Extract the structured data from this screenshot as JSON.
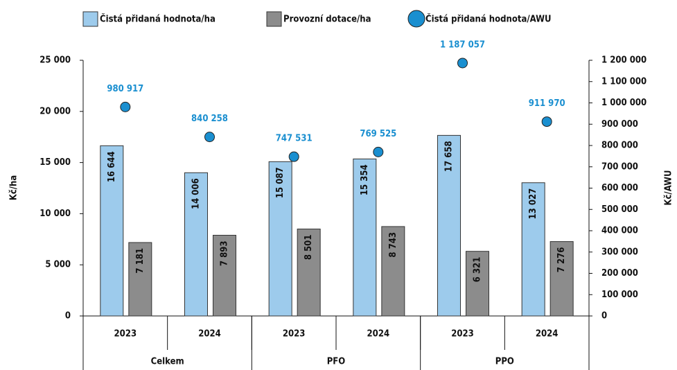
{
  "chart_data": {
    "type": "bar",
    "categories": [
      "2023",
      "2024",
      "2023",
      "2024",
      "2023",
      "2024"
    ],
    "groups": [
      "Celkem",
      "PFO",
      "PPO"
    ],
    "y_label": "Kč/ha",
    "y2_label": "Kč/AWU",
    "ylim": [
      0,
      25000
    ],
    "yticks": [
      0,
      {
        "value": 5000,
        "label": "5 000"
      },
      {
        "value": 10000,
        "label": "10 000"
      },
      {
        "value": 15000,
        "label": "15 000"
      },
      {
        "value": 20000,
        "label": "20 000"
      },
      {
        "value": 25000,
        "label": "25 000"
      }
    ],
    "y2lim": [
      0,
      1200000
    ],
    "y2ticks": [
      0,
      {
        "value": 100000,
        "label": "100 000"
      },
      {
        "value": 200000,
        "label": "200 000"
      },
      {
        "value": 300000,
        "label": "300 000"
      },
      {
        "value": 400000,
        "label": "400 000"
      },
      {
        "value": 500000,
        "label": "500 000"
      },
      {
        "value": 600000,
        "label": "600 000"
      },
      {
        "value": 700000,
        "label": "700 000"
      },
      {
        "value": 800000,
        "label": "800 000"
      },
      {
        "value": 900000,
        "label": "900 000"
      },
      {
        "value": 1000000,
        "label": "1 000 000"
      },
      {
        "value": 1100000,
        "label": "1 100 000"
      },
      {
        "value": 1200000,
        "label": "1 200 000"
      }
    ],
    "series": [
      {
        "name": "Čistá přidaná hodnota/ha",
        "type": "bar",
        "color": "#9dcbec",
        "values": [
          16644,
          14006,
          15087,
          15354,
          17658,
          13027
        ],
        "value_labels": [
          "16 644",
          "14 006",
          "15 087",
          "15 354",
          "17 658",
          "13 027"
        ]
      },
      {
        "name": "Provozní dotace/ha",
        "type": "bar",
        "color": "#8c8c8c",
        "values": [
          7181,
          7893,
          8501,
          8743,
          6321,
          7276
        ],
        "value_labels": [
          "7 181",
          "7 893",
          "8 501",
          "8 743",
          "6 321",
          "7 276"
        ]
      },
      {
        "name": "Čistá přidaná hodnota/AWU",
        "type": "scatter",
        "axis": "y2",
        "color": "#1a8fd0",
        "values": [
          980917,
          840258,
          747531,
          769525,
          1187057,
          911970
        ],
        "value_labels": [
          "980 917",
          "840 258",
          "747 531",
          "769 525",
          "1 187 057",
          "911 970"
        ]
      }
    ]
  }
}
